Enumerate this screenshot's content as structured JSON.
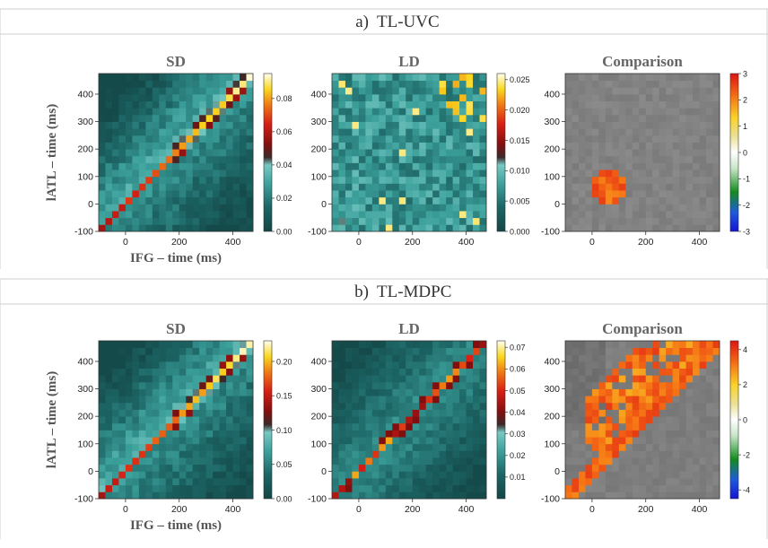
{
  "sections": [
    {
      "label": "a)",
      "title": "TL-UVC",
      "ylabel": "lATL – time (ms)",
      "xlabel": "IFG – time (ms)",
      "panels": [
        {
          "title": "SD",
          "vmin": 0,
          "vmax": 0.095,
          "cbar_ticks": [
            0.0,
            0.02,
            0.04,
            0.06,
            0.08
          ],
          "cbar_fmt": "2",
          "kind": "diag",
          "seed": 11
        },
        {
          "title": "LD",
          "vmin": 0,
          "vmax": 0.026,
          "cbar_ticks": [
            0.0,
            0.005,
            0.01,
            0.015,
            0.02,
            0.025
          ],
          "cbar_fmt": "3",
          "kind": "noisy",
          "seed": 23
        },
        {
          "title": "Comparison",
          "vmin": -3,
          "vmax": 3,
          "cbar_ticks": [
            -3,
            -2,
            -1,
            0,
            1,
            2,
            3
          ],
          "cbar_fmt": "0",
          "kind": "cluster_small",
          "seed": 37
        }
      ]
    },
    {
      "label": "b)",
      "title": "TL-MDPC",
      "ylabel": "lATL – time (ms)",
      "xlabel": "IFG – time (ms)",
      "panels": [
        {
          "title": "SD",
          "vmin": 0,
          "vmax": 0.23,
          "cbar_ticks": [
            0.0,
            0.05,
            0.1,
            0.15,
            0.2
          ],
          "cbar_fmt": "2",
          "kind": "diag",
          "seed": 41
        },
        {
          "title": "LD",
          "vmin": 0,
          "vmax": 0.073,
          "cbar_ticks": [
            0.01,
            0.02,
            0.03,
            0.04,
            0.05,
            0.06,
            0.07
          ],
          "cbar_fmt": "2",
          "kind": "diag_thin",
          "seed": 53
        },
        {
          "title": "Comparison",
          "vmin": -4.5,
          "vmax": 4.5,
          "cbar_ticks": [
            -4,
            -2,
            0,
            2,
            4
          ],
          "cbar_fmt": "0",
          "kind": "cluster_big",
          "seed": 67
        }
      ]
    }
  ],
  "chart_data": {
    "type": "heatmap",
    "x_axis": {
      "range_ms": [
        -100,
        475
      ],
      "ticks": [
        0,
        200,
        400
      ]
    },
    "y_axis": {
      "range_ms": [
        -100,
        475
      ],
      "ticks": [
        -100,
        0,
        100,
        200,
        300,
        400
      ]
    },
    "bin_ms": 25,
    "sd_colormap": "teal-yellow-red-white (sequential)",
    "comparison_colormap": "blue-green-gray-yellow-red (diverging, gray near zero)"
  }
}
